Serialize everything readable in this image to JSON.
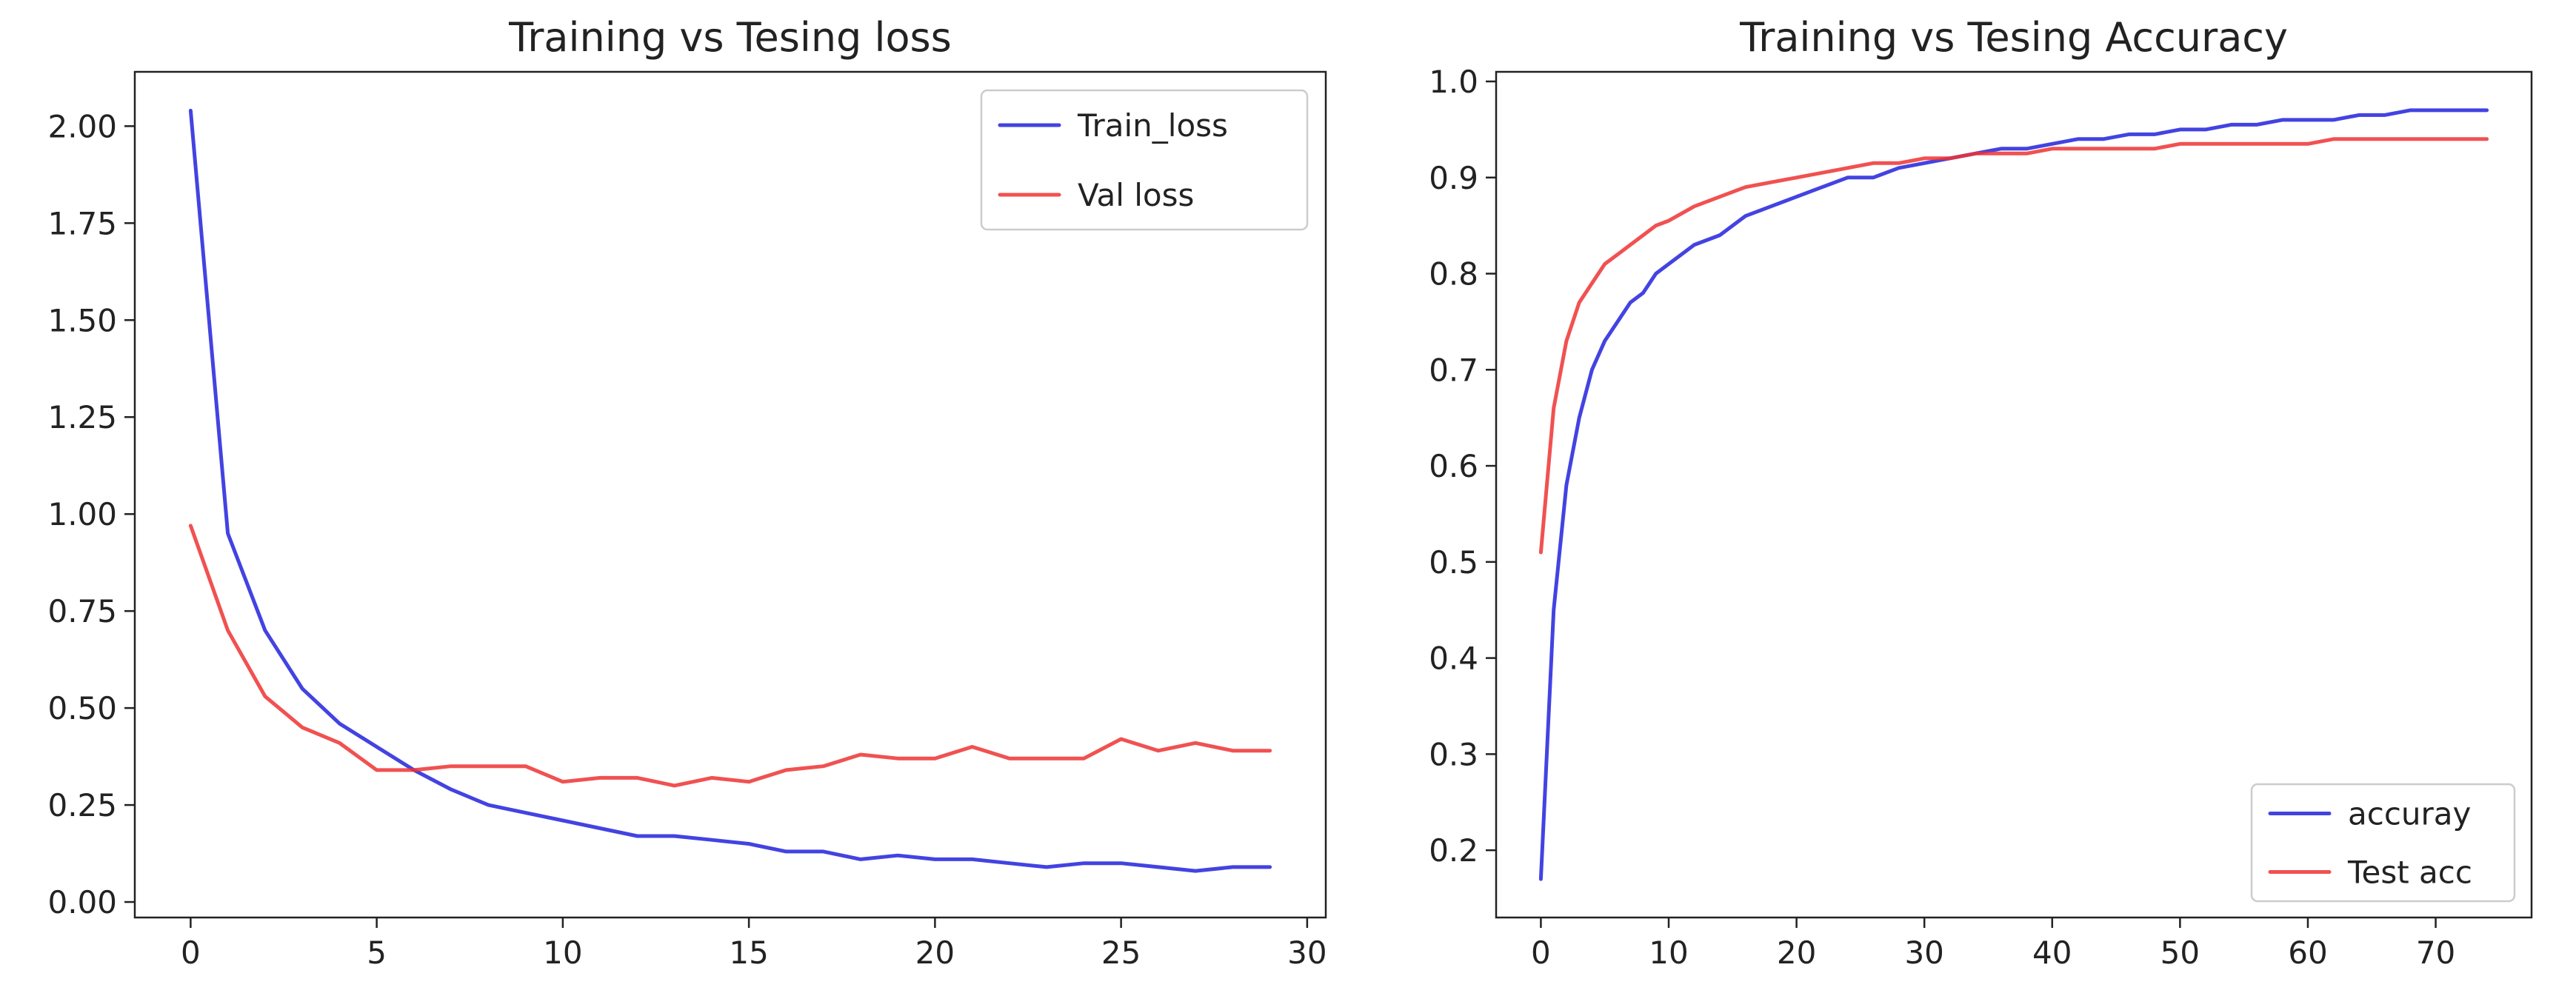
{
  "chart_data": [
    {
      "type": "line",
      "title": "Training vs Tesing  loss",
      "xlabel": "",
      "ylabel": "",
      "xlim": [
        -1.5,
        30.5
      ],
      "ylim": [
        -0.04,
        2.14
      ],
      "x_ticks": [
        0,
        5,
        10,
        15,
        20,
        25,
        30
      ],
      "x_tick_labels": [
        "0",
        "5",
        "10",
        "15",
        "20",
        "25",
        "30"
      ],
      "y_ticks": [
        0,
        0.25,
        0.5,
        0.75,
        1,
        1.25,
        1.5,
        1.75,
        2
      ],
      "y_tick_labels": [
        "0.00",
        "0.25",
        "0.50",
        "0.75",
        "1.00",
        "1.25",
        "1.50",
        "1.75",
        "2.00"
      ],
      "grid": false,
      "legend_position": "top-right",
      "x": [
        0,
        1,
        2,
        3,
        4,
        5,
        6,
        7,
        8,
        9,
        10,
        11,
        12,
        13,
        14,
        15,
        16,
        17,
        18,
        19,
        20,
        21,
        22,
        23,
        24,
        25,
        26,
        27,
        28,
        29
      ],
      "series": [
        {
          "name": "Train_loss",
          "color": "#2222dd",
          "values": [
            2.04,
            0.95,
            0.7,
            0.55,
            0.46,
            0.4,
            0.34,
            0.29,
            0.25,
            0.23,
            0.21,
            0.19,
            0.17,
            0.17,
            0.16,
            0.15,
            0.13,
            0.13,
            0.11,
            0.12,
            0.11,
            0.11,
            0.1,
            0.09,
            0.1,
            0.1,
            0.09,
            0.08,
            0.09,
            0.09
          ]
        },
        {
          "name": "Val loss",
          "color": "#ee3333",
          "values": [
            0.97,
            0.7,
            0.53,
            0.45,
            0.41,
            0.34,
            0.34,
            0.35,
            0.35,
            0.35,
            0.31,
            0.32,
            0.32,
            0.3,
            0.32,
            0.31,
            0.34,
            0.35,
            0.38,
            0.37,
            0.37,
            0.4,
            0.37,
            0.37,
            0.37,
            0.42,
            0.39,
            0.41,
            0.39,
            0.39
          ]
        }
      ]
    },
    {
      "type": "line",
      "title": "Training vs Tesing Accuracy",
      "xlabel": "",
      "ylabel": "",
      "xlim": [
        -3.5,
        77.5
      ],
      "ylim": [
        0.13,
        1.01
      ],
      "x_ticks": [
        0,
        10,
        20,
        30,
        40,
        50,
        60,
        70
      ],
      "x_tick_labels": [
        "0",
        "10",
        "20",
        "30",
        "40",
        "50",
        "60",
        "70"
      ],
      "y_ticks": [
        0.2,
        0.3,
        0.4,
        0.5,
        0.6,
        0.7,
        0.8,
        0.9,
        1.0
      ],
      "y_tick_labels": [
        "0.2",
        "0.3",
        "0.4",
        "0.5",
        "0.6",
        "0.7",
        "0.8",
        "0.9",
        "1.0"
      ],
      "grid": false,
      "legend_position": "bottom-right",
      "x": [
        0,
        1,
        2,
        3,
        4,
        5,
        6,
        7,
        8,
        9,
        10,
        12,
        14,
        16,
        18,
        20,
        22,
        24,
        26,
        28,
        30,
        32,
        34,
        36,
        38,
        40,
        42,
        44,
        46,
        48,
        50,
        52,
        54,
        56,
        58,
        60,
        62,
        64,
        66,
        68,
        70,
        72,
        74
      ],
      "series": [
        {
          "name": "accuray",
          "color": "#2222dd",
          "values": [
            0.17,
            0.45,
            0.58,
            0.65,
            0.7,
            0.73,
            0.75,
            0.77,
            0.78,
            0.8,
            0.81,
            0.83,
            0.84,
            0.86,
            0.87,
            0.88,
            0.89,
            0.9,
            0.9,
            0.91,
            0.915,
            0.92,
            0.925,
            0.93,
            0.93,
            0.935,
            0.94,
            0.94,
            0.945,
            0.945,
            0.95,
            0.95,
            0.955,
            0.955,
            0.96,
            0.96,
            0.96,
            0.965,
            0.965,
            0.97,
            0.97,
            0.97,
            0.97
          ]
        },
        {
          "name": "Test acc",
          "color": "#ee3333",
          "values": [
            0.51,
            0.66,
            0.73,
            0.77,
            0.79,
            0.81,
            0.82,
            0.83,
            0.84,
            0.85,
            0.855,
            0.87,
            0.88,
            0.89,
            0.895,
            0.9,
            0.905,
            0.91,
            0.915,
            0.915,
            0.92,
            0.92,
            0.925,
            0.925,
            0.925,
            0.93,
            0.93,
            0.93,
            0.93,
            0.93,
            0.935,
            0.935,
            0.935,
            0.935,
            0.935,
            0.935,
            0.94,
            0.94,
            0.94,
            0.94,
            0.94,
            0.94,
            0.94
          ]
        }
      ]
    }
  ]
}
